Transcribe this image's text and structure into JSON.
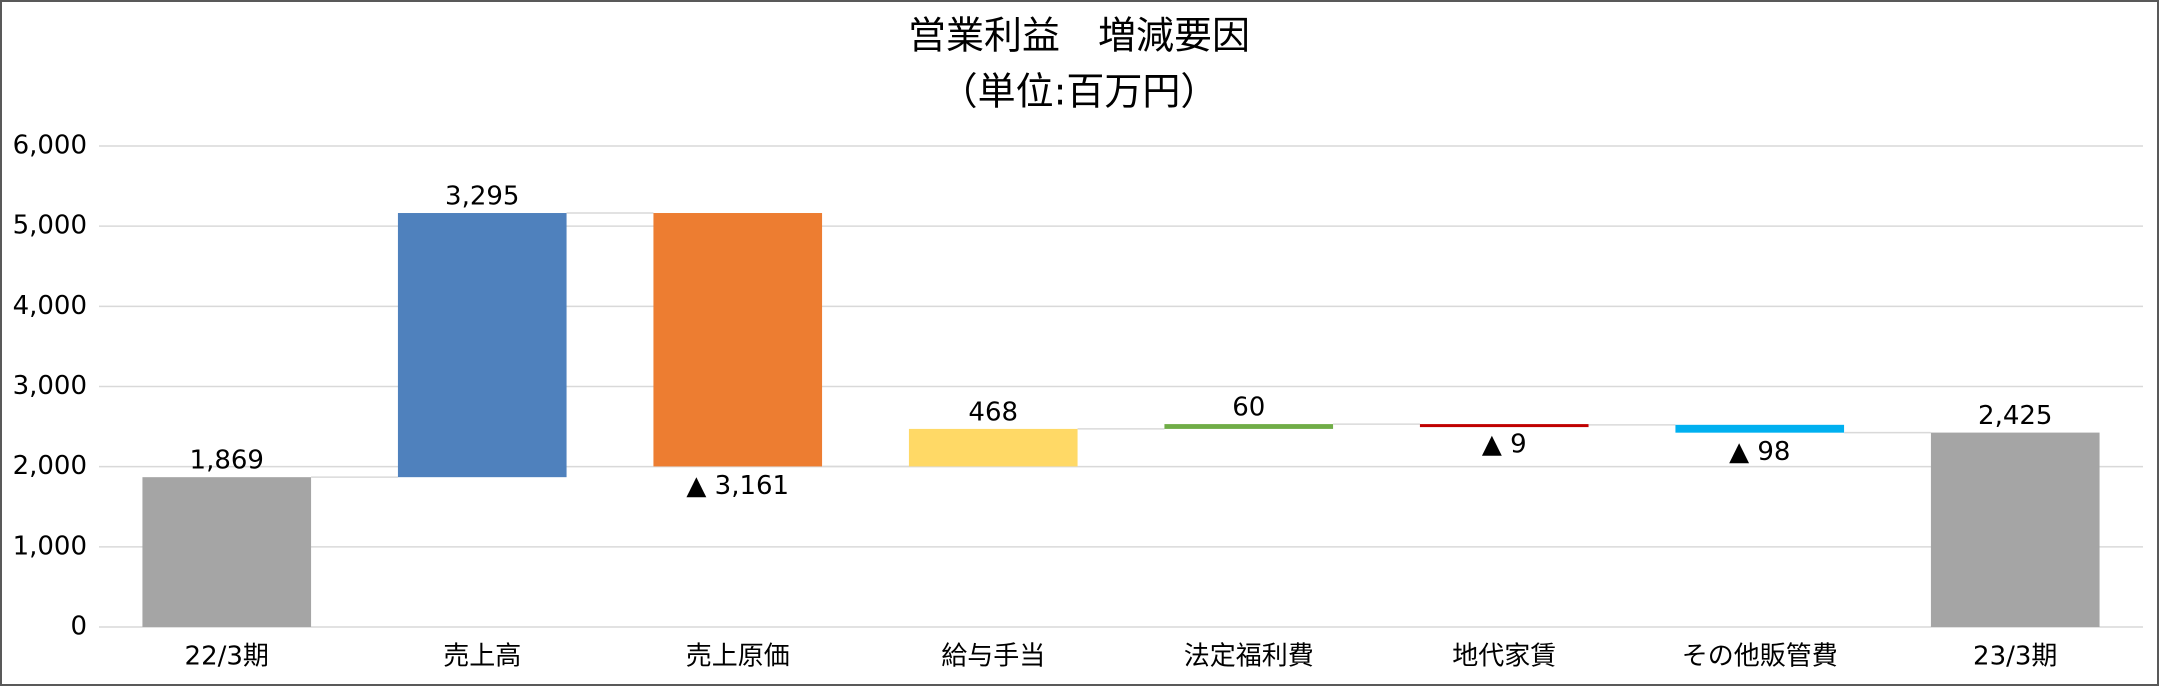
{
  "chart_data": {
    "type": "waterfall",
    "title": "営業利益　増減要因",
    "subtitle": "（単位:百万円）",
    "categories": [
      "22/3期",
      "売上高",
      "売上原価",
      "給与手当",
      "法定福利費",
      "地代家賃",
      "その他販管費",
      "23/3期"
    ],
    "values": [
      1869,
      3295,
      -3161,
      468,
      60,
      -9,
      -98,
      2425
    ],
    "value_labels": [
      "1,869",
      "3,295",
      "▲ 3,161",
      "468",
      "60",
      "▲ 9",
      "▲ 98",
      "2,425"
    ],
    "is_total": [
      true,
      false,
      false,
      false,
      false,
      false,
      false,
      true
    ],
    "colors": [
      "#a5a5a5",
      "#4f81bd",
      "#ed7d31",
      "#ffd966",
      "#70ad47",
      "#c00000",
      "#00b0f0",
      "#a5a5a5"
    ],
    "ylim": [
      0,
      6000
    ],
    "yticks": [
      0,
      {
        "value": 1000,
        "label": "1,000"
      },
      {
        "value": 2000,
        "label": "2,000"
      },
      {
        "value": 3000,
        "label": "3,000"
      },
      {
        "value": 4000,
        "label": "4,000"
      },
      {
        "value": 5000,
        "label": "5,000"
      },
      {
        "value": 6000,
        "label": "6,000"
      }
    ],
    "grid": true
  }
}
